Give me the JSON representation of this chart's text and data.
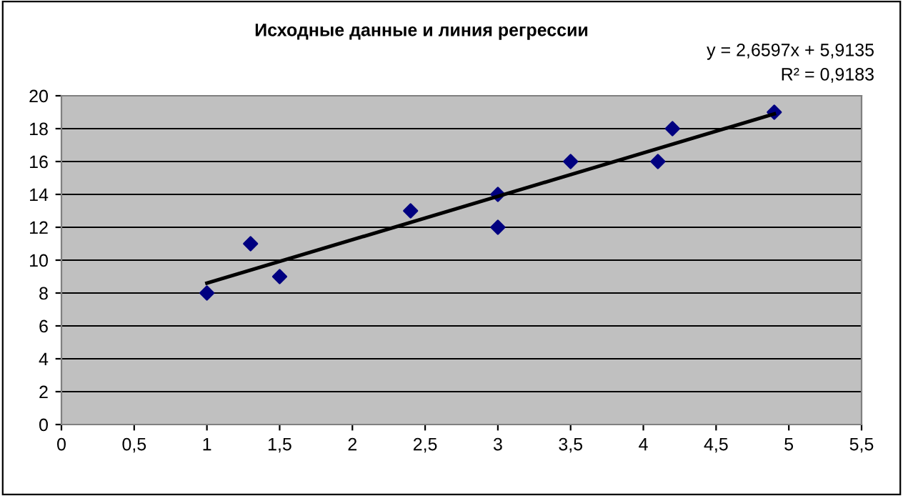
{
  "chart_data": {
    "type": "scatter",
    "title": "Исходные данные и линия регрессии",
    "annotations": [
      "y = 2,6597x + 5,9135",
      "R² = 0,9183"
    ],
    "series": [
      {
        "color": "#000080",
        "marker": "diamond",
        "x": [
          1,
          1.3,
          1.5,
          2.4,
          3,
          3,
          3.5,
          4.1,
          4.2,
          4.9
        ],
        "values": [
          8,
          11,
          9,
          13,
          14,
          12,
          16,
          16,
          18,
          19
        ]
      },
      {
        "type": "line",
        "color": "#000000",
        "line_style": "solid",
        "x": [
          1,
          4.9
        ],
        "values": [
          8.6,
          18.9
        ]
      }
    ],
    "xlim": [
      0,
      5.5
    ],
    "ylim": [
      0,
      20
    ],
    "xticks": [
      0,
      {
        "value": 0.5,
        "label": "0,5"
      },
      1,
      {
        "value": 1.5,
        "label": "1,5"
      },
      2,
      {
        "value": 2.5,
        "label": "2,5"
      },
      3,
      {
        "value": 3.5,
        "label": "3,5"
      },
      4,
      {
        "value": 4.5,
        "label": "4,5"
      },
      5,
      {
        "value": 5.5,
        "label": "5,5"
      }
    ],
    "yticks": [
      0,
      2,
      4,
      6,
      8,
      10,
      12,
      14,
      16,
      18,
      20
    ],
    "grid": "y",
    "legend": false
  }
}
